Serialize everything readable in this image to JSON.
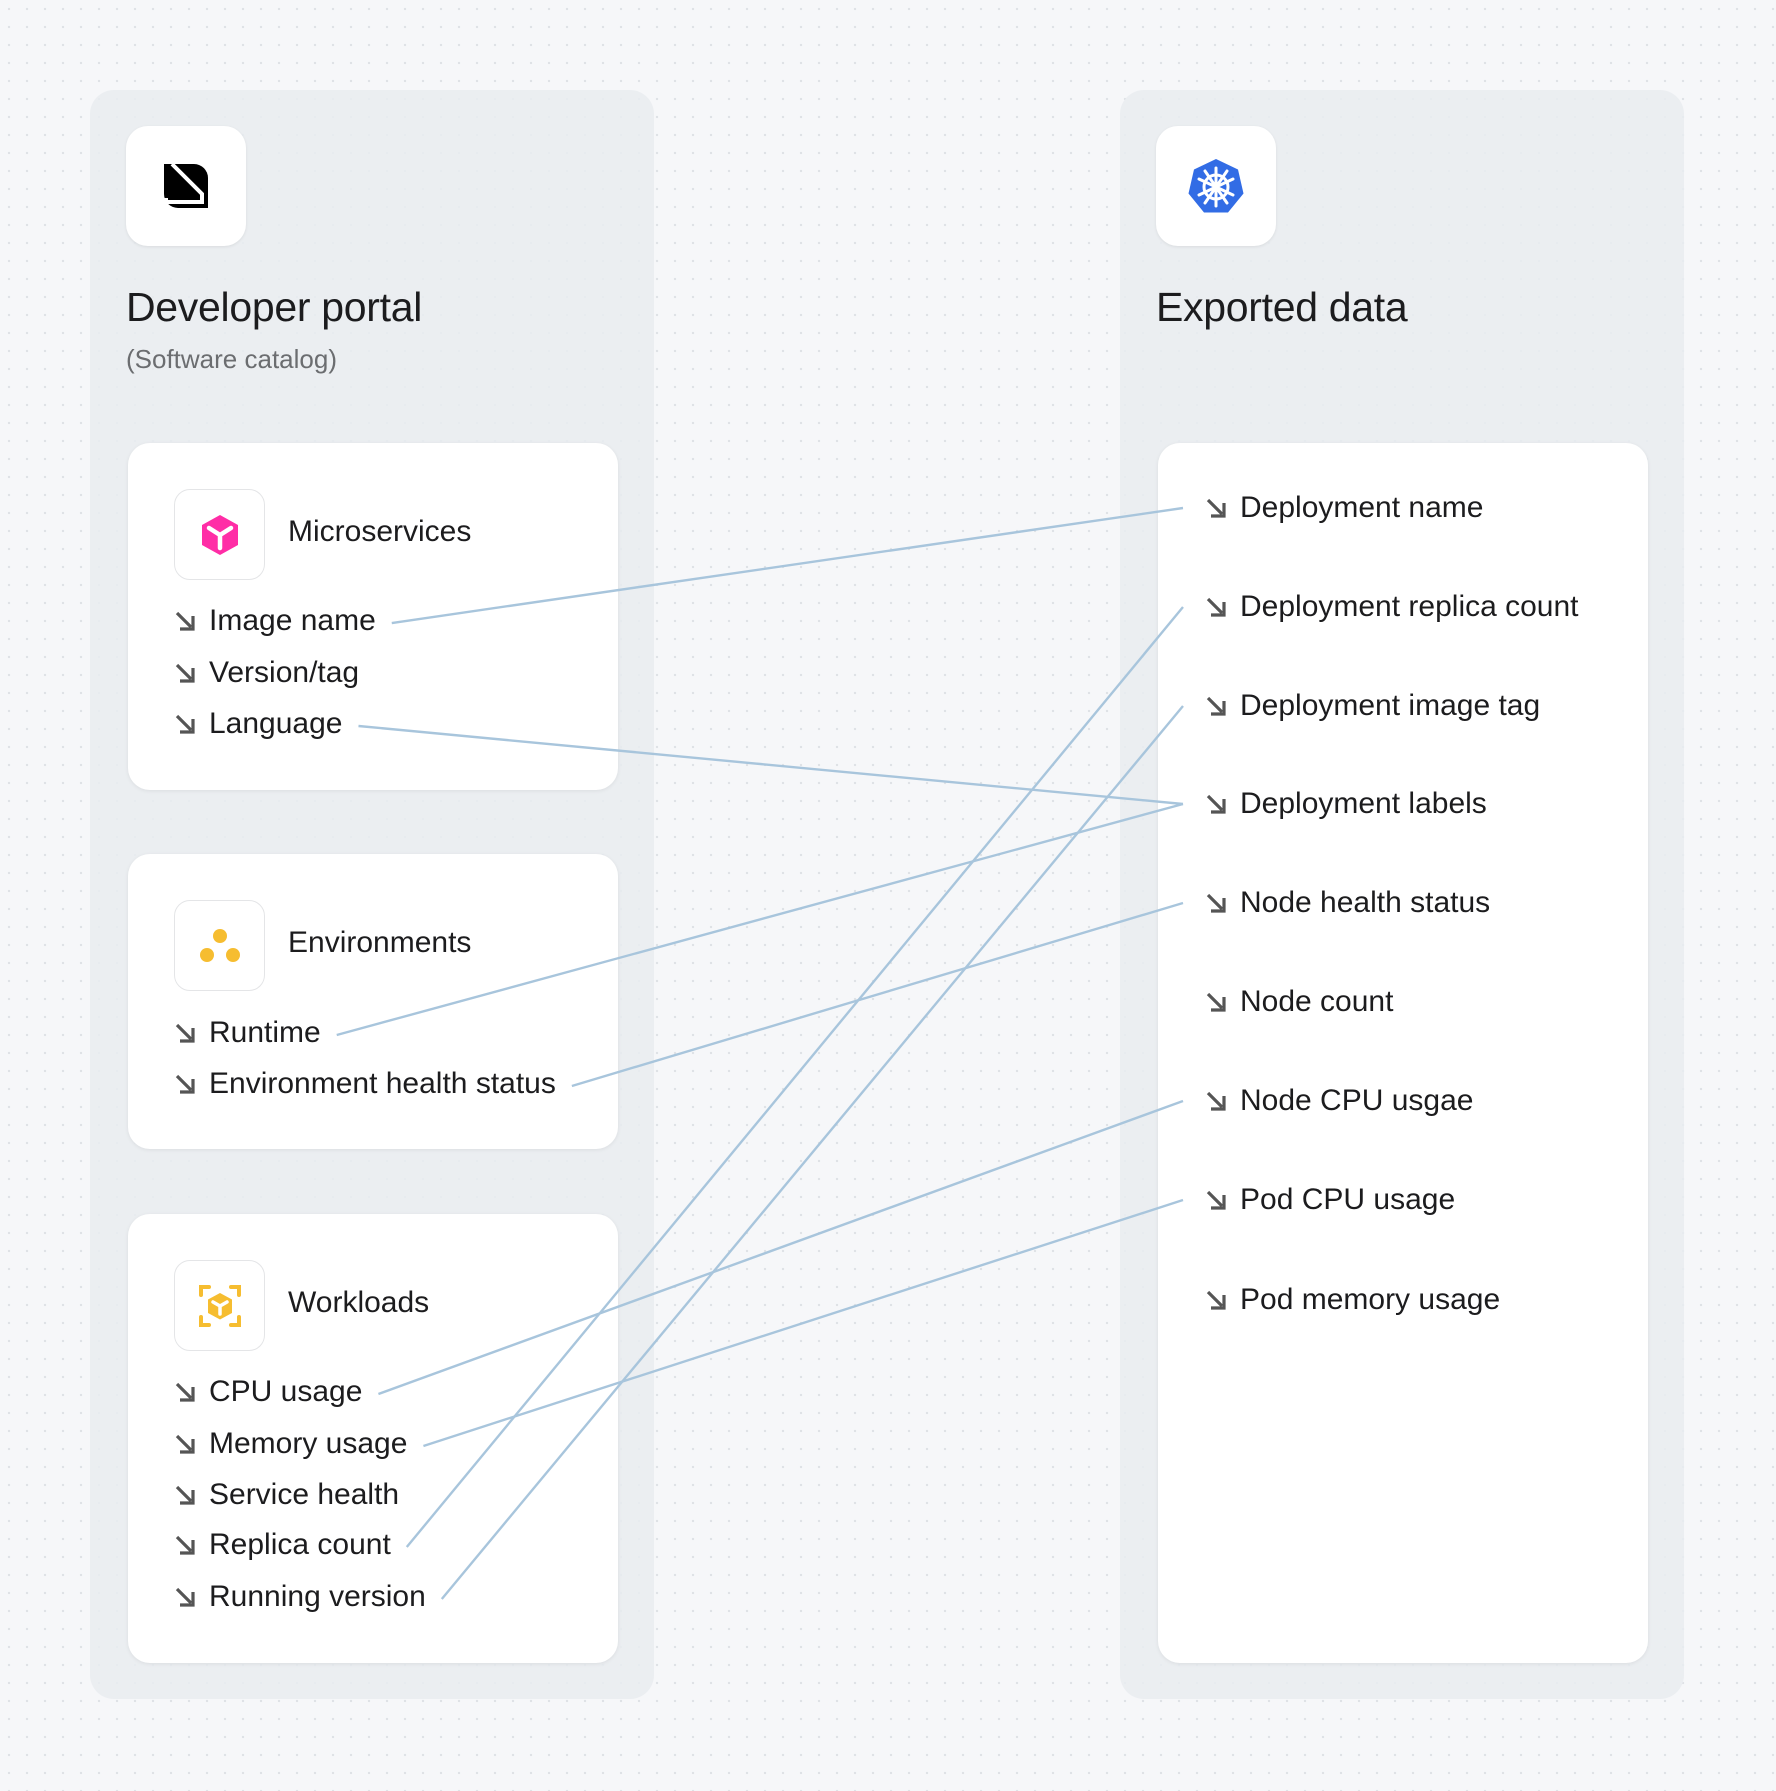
{
  "left": {
    "title": "Developer portal",
    "subtitle": "(Software catalog)",
    "logo_icon": "portal-logo-icon",
    "cards": [
      {
        "title": "Microservices",
        "icon": "cube-icon",
        "icon_color": "#ff2da6",
        "items": [
          "Image name",
          "Version/tag",
          "Language"
        ]
      },
      {
        "title": "Environments",
        "icon": "dots-cluster-icon",
        "icon_color": "#f6bd30",
        "items": [
          "Runtime",
          "Environment health status"
        ]
      },
      {
        "title": "Workloads",
        "icon": "cube-focus-icon",
        "icon_color": "#f6bd30",
        "items": [
          "CPU usage",
          "Memory usage",
          "Service health",
          "Replica count",
          "Running version"
        ]
      }
    ]
  },
  "right": {
    "title": "Exported data",
    "logo_icon": "kubernetes-icon",
    "logo_color": "#326ce5",
    "items": [
      "Deployment name",
      "Deployment replica count",
      "Deployment image tag",
      "Deployment labels",
      "Node health status",
      "Node count",
      "Node CPU usgae",
      "Pod CPU usage",
      "Pod memory usage"
    ]
  },
  "connections": [
    {
      "from": "Image name",
      "to": "Deployment name"
    },
    {
      "from": "Language",
      "to": "Deployment labels"
    },
    {
      "from": "Runtime",
      "to": "Deployment labels"
    },
    {
      "from": "Environment health status",
      "to": "Node health status"
    },
    {
      "from": "CPU usage",
      "to": "Node CPU usgae"
    },
    {
      "from": "Memory usage",
      "to": "Pod CPU usage"
    },
    {
      "from": "Replica count",
      "to": "Deployment replica count"
    },
    {
      "from": "Running version",
      "to": "Deployment image tag"
    }
  ],
  "line_color": "#a8c5dc"
}
